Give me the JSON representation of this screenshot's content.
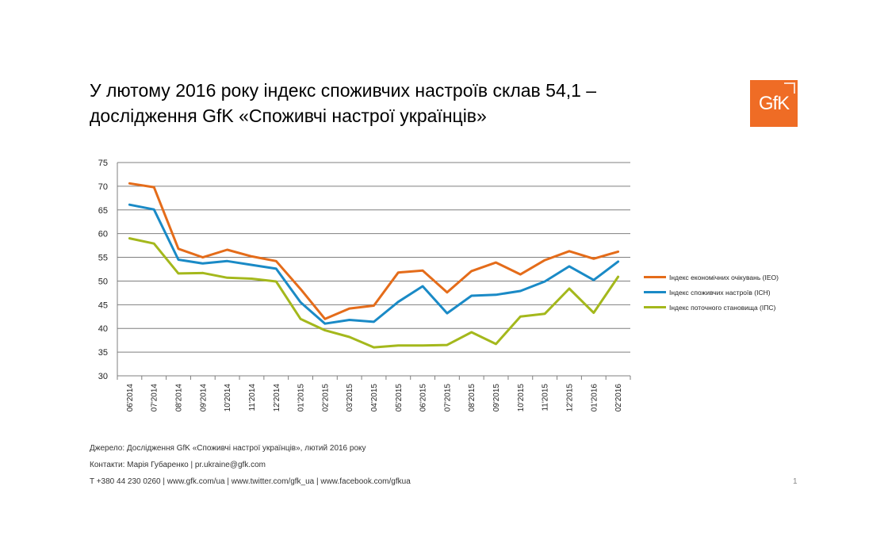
{
  "header": {
    "title_line1": "У лютому 2016 року індекс споживчих настроїв склав 54,1 –",
    "title_line2": "дослідження GfK «Споживчі настрої українців»",
    "logo_text": "GfK"
  },
  "colors": {
    "brand": "#ef6c25",
    "grid": "#7f7f7f"
  },
  "chart_data": {
    "type": "line",
    "categories": [
      "06'2014",
      "07'2014",
      "08'2014",
      "09'2014",
      "10'2014",
      "11'2014",
      "12'2014",
      "01'2015",
      "02'2015",
      "03'2015",
      "04'2015",
      "05'2015",
      "06'2015",
      "07'2015",
      "08'2015",
      "09'2015",
      "10'2015",
      "11'2015",
      "12'2015",
      "01'2016",
      "02'2016"
    ],
    "y_ticks": [
      "75",
      "70",
      "65",
      "60",
      "55",
      "50",
      "45",
      "40",
      "35",
      "30"
    ],
    "ylim": [
      30,
      75
    ],
    "grid": true,
    "legend_position": "right",
    "series": [
      {
        "name": "Індекс економічних очікувань (ІЕО)",
        "color": "#e46c1a",
        "values": [
          70.6,
          69.8,
          56.8,
          55.0,
          56.6,
          55.2,
          54.2,
          48.3,
          42.0,
          44.2,
          44.8,
          51.8,
          52.2,
          47.6,
          52.1,
          53.9,
          51.4,
          54.4,
          56.3,
          54.7,
          56.2
        ]
      },
      {
        "name": "Індекс споживчих настроїв (ІСН)",
        "color": "#1a8ac6",
        "values": [
          66.1,
          65.1,
          54.5,
          53.7,
          54.2,
          53.4,
          52.6,
          45.5,
          41.0,
          41.8,
          41.4,
          45.6,
          48.9,
          43.2,
          46.9,
          47.1,
          47.9,
          49.9,
          53.1,
          50.2,
          54.1
        ]
      },
      {
        "name": "Індекс поточного становища (ІПС)",
        "color": "#a4b81c",
        "values": [
          59.0,
          57.9,
          51.6,
          51.7,
          50.7,
          50.5,
          49.9,
          42.0,
          39.6,
          38.2,
          36.0,
          36.4,
          36.4,
          36.5,
          39.2,
          36.7,
          42.5,
          43.1,
          48.4,
          43.3,
          50.9
        ]
      }
    ]
  },
  "footer": {
    "source": "Джерело: Дослідження GfK «Споживчі настрої українців», лютий 2016 року",
    "contacts": "Контакти: Марія Губаренко | pr.ukraine@gfk.com",
    "links": "T +380 44 230 0260 | www.gfk.com/ua | www.twitter.com/gfk_ua | www.facebook.com/gfkua",
    "page_number": "1"
  }
}
